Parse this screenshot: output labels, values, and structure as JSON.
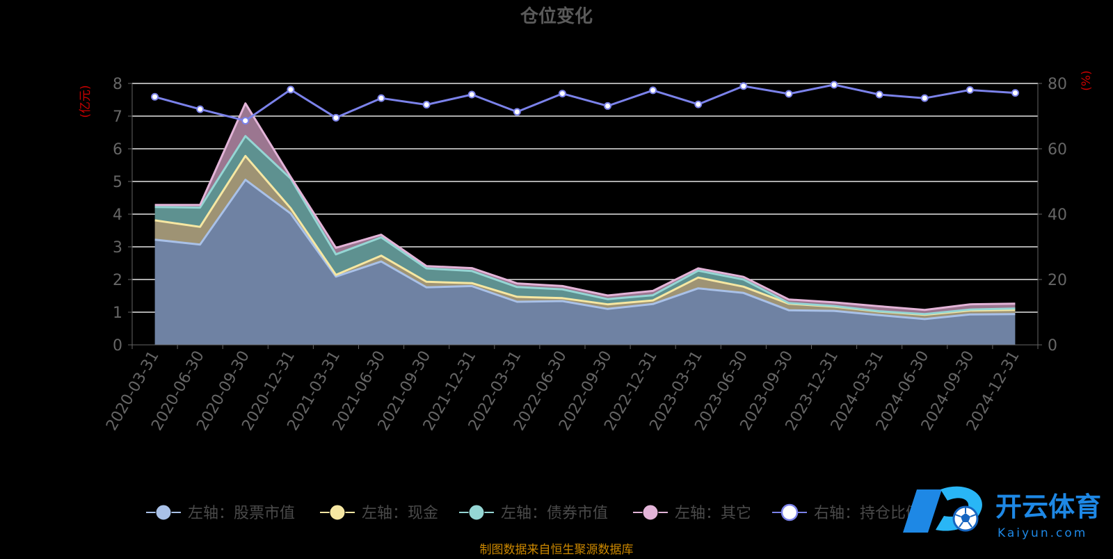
{
  "chart_data": {
    "type": "area",
    "title": "仓位变化",
    "left_axis_label": "(亿元)",
    "right_axis_label": "(%)",
    "left_ylim": [
      0,
      8
    ],
    "left_ticks": [
      "0",
      "1",
      "2",
      "3",
      "4",
      "5",
      "6",
      "7",
      "8"
    ],
    "right_ylim": [
      0,
      80
    ],
    "right_ticks": [
      "0",
      "20",
      "40",
      "60",
      "80"
    ],
    "grid": true,
    "legend_position": "bottom",
    "categories": [
      "2020-03-31",
      "2020-06-30",
      "2020-09-30",
      "2020-12-31",
      "2021-03-31",
      "2021-06-30",
      "2021-09-30",
      "2021-12-31",
      "2022-03-31",
      "2022-06-30",
      "2022-09-30",
      "2022-12-31",
      "2023-03-31",
      "2023-06-30",
      "2023-09-30",
      "2023-12-31",
      "2024-03-31",
      "2024-06-30",
      "2024-09-30",
      "2024-12-31"
    ],
    "stacked_series": [
      {
        "name": "左轴：股票市值",
        "axis": "left",
        "fill": "#6f82a3",
        "line": "#a9c1e8",
        "values": [
          3.22,
          3.07,
          5.05,
          4.02,
          2.09,
          2.55,
          1.76,
          1.8,
          1.32,
          1.34,
          1.1,
          1.25,
          1.73,
          1.59,
          1.06,
          1.04,
          0.91,
          0.79,
          0.93,
          0.94
        ]
      },
      {
        "name": "左轴：现金",
        "axis": "left",
        "fill": "#9e9374",
        "line": "#f6e7a2",
        "values": [
          0.59,
          0.54,
          0.73,
          0.16,
          0.05,
          0.18,
          0.17,
          0.09,
          0.15,
          0.09,
          0.14,
          0.11,
          0.33,
          0.19,
          0.2,
          0.13,
          0.11,
          0.13,
          0.12,
          0.13
        ]
      },
      {
        "name": "左轴：债券市值",
        "axis": "left",
        "fill": "#5e9190",
        "line": "#95d6d4",
        "values": [
          0.41,
          0.59,
          0.61,
          0.91,
          0.63,
          0.56,
          0.41,
          0.37,
          0.3,
          0.27,
          0.16,
          0.16,
          0.21,
          0.22,
          0.02,
          0.02,
          0.01,
          0.02,
          0.03,
          0.04
        ]
      },
      {
        "name": "左轴：其它",
        "axis": "left",
        "fill": "#9b7690",
        "line": "#e3b4d8",
        "values": [
          0.06,
          0.08,
          1.0,
          0.05,
          0.2,
          0.08,
          0.07,
          0.09,
          0.11,
          0.1,
          0.11,
          0.13,
          0.07,
          0.08,
          0.11,
          0.11,
          0.15,
          0.13,
          0.16,
          0.15
        ]
      }
    ],
    "line_series": {
      "name": "右轴：持仓比例",
      "axis": "right",
      "color": "#7b82ea",
      "values": [
        75.9,
        72.1,
        68.6,
        78.1,
        69.5,
        75.5,
        73.5,
        76.6,
        71.3,
        76.9,
        73.1,
        77.9,
        73.6,
        79.2,
        76.8,
        79.6,
        76.6,
        75.5,
        78.0,
        77.1
      ]
    },
    "source_note": "制图数据来自恒生聚源数据库"
  },
  "watermark": {
    "brand_text": "开云体育",
    "brand_sub": "Kaiyun.com"
  },
  "colors": {
    "background": "#000000",
    "title": "#5a5a5a",
    "axis_text": "#666666",
    "axis_label": "#cc0000",
    "grid": "#e6e6e6",
    "legend_text": "#4a4a4a",
    "source_note": "#cc8800",
    "brand_blue": "#1e88e5"
  }
}
